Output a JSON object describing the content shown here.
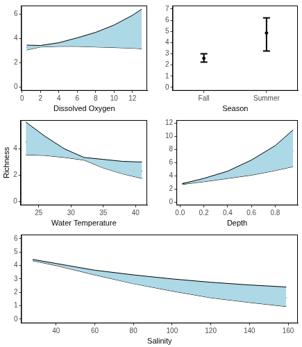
{
  "chart_data": [
    {
      "type": "line",
      "xlabel": "Dissolved Oxygen",
      "color": "#add8e6",
      "grid": false,
      "x": [
        0.5,
        2,
        4,
        6,
        8,
        10,
        12,
        13
      ],
      "fit": [
        3.25,
        3.35,
        3.5,
        3.7,
        3.9,
        4.1,
        4.35,
        4.5
      ],
      "lower": [
        3.05,
        3.3,
        3.35,
        3.35,
        3.3,
        3.25,
        3.2,
        3.15
      ],
      "upper": [
        3.45,
        3.42,
        3.65,
        4.05,
        4.5,
        5.1,
        5.9,
        6.4
      ],
      "xlim": [
        -0.1,
        13.6
      ],
      "xticks": [
        0,
        2,
        4,
        6,
        8,
        10,
        12
      ],
      "ylim": [
        -0.3,
        6.7
      ],
      "yticks": [
        0,
        2,
        4,
        6
      ]
    },
    {
      "type": "scatter",
      "xlabel": "Season",
      "color": "#000000",
      "grid": false,
      "categories": [
        "Fall",
        "Summer"
      ],
      "values": [
        2.6,
        4.85
      ],
      "error_low": [
        2.25,
        3.25
      ],
      "error_high": [
        3.0,
        6.2
      ],
      "ylim": [
        -0.3,
        7.3
      ],
      "yticks": [
        0,
        1,
        2,
        3,
        4,
        5,
        6,
        7
      ]
    },
    {
      "type": "line",
      "xlabel": "Water Temperature",
      "ylabel": "Richness",
      "color": "#add8e6",
      "grid": false,
      "x": [
        23,
        26,
        29,
        32,
        35,
        38,
        41
      ],
      "fit": [
        4.55,
        4.1,
        3.65,
        3.25,
        2.9,
        2.6,
        2.3
      ],
      "lower": [
        3.55,
        3.5,
        3.35,
        3.15,
        2.55,
        2.1,
        1.75
      ],
      "upper": [
        6.05,
        4.95,
        4.0,
        3.35,
        3.2,
        3.05,
        3.0
      ],
      "xlim": [
        22.2,
        41.8
      ],
      "xticks": [
        25,
        30,
        35,
        40
      ],
      "ylim": [
        -0.3,
        6.2
      ],
      "yticks": [
        0,
        2,
        4
      ]
    },
    {
      "type": "line",
      "xlabel": "Depth",
      "color": "#add8e6",
      "grid": false,
      "x": [
        0.02,
        0.2,
        0.4,
        0.6,
        0.8,
        0.95
      ],
      "fit": [
        2.75,
        3.3,
        4.1,
        5.1,
        6.4,
        7.9
      ],
      "lower": [
        2.7,
        3.1,
        3.6,
        4.1,
        4.8,
        5.4
      ],
      "upper": [
        2.8,
        3.6,
        4.7,
        6.4,
        8.6,
        11.0
      ],
      "xlim": [
        -0.03,
        0.99
      ],
      "xticks": [
        {
          "value": 0,
          "label": "0.0"
        },
        0.2,
        0.4,
        0.6,
        0.8
      ],
      "ylim": [
        -0.5,
        12.5
      ],
      "yticks": [
        0,
        2,
        4,
        6,
        8,
        10,
        12
      ]
    },
    {
      "type": "line",
      "xlabel": "Salinity",
      "color": "#add8e6",
      "grid": false,
      "x": [
        28,
        40,
        60,
        80,
        100,
        120,
        140,
        159
      ],
      "fit": [
        4.4,
        4.05,
        3.45,
        2.95,
        2.5,
        2.15,
        1.85,
        1.6
      ],
      "lower": [
        4.35,
        4.0,
        3.3,
        2.65,
        2.1,
        1.6,
        1.25,
        0.95
      ],
      "upper": [
        4.45,
        4.15,
        3.65,
        3.3,
        3.0,
        2.75,
        2.55,
        2.4
      ],
      "xlim": [
        22,
        165
      ],
      "xticks": [
        40,
        60,
        80,
        100,
        120,
        140,
        160
      ],
      "ylim": [
        -0.3,
        6.3
      ],
      "yticks": [
        0,
        1,
        2,
        3,
        4,
        5,
        6
      ]
    }
  ]
}
